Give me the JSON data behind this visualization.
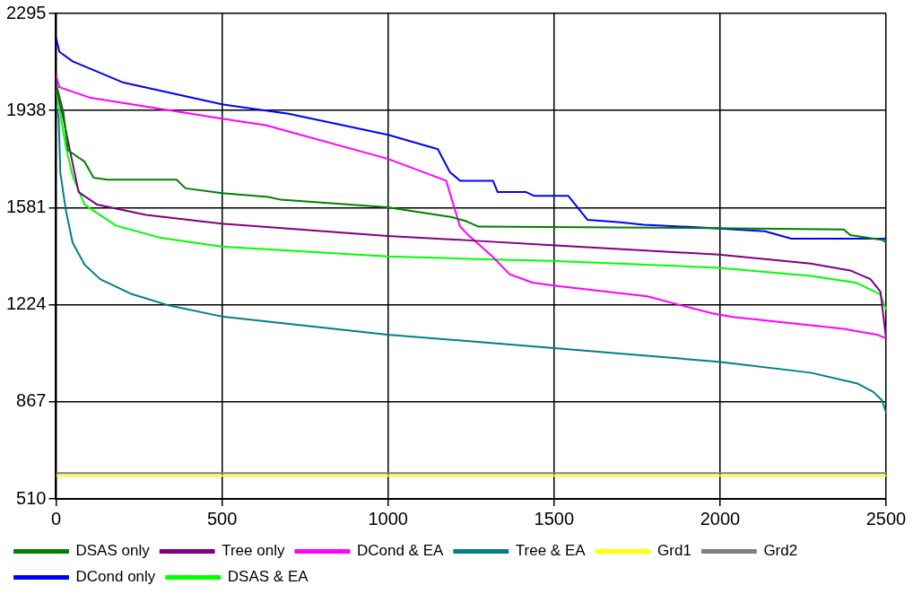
{
  "chart_data": {
    "type": "line",
    "xlim": [
      0,
      2500
    ],
    "xticks": [
      0,
      500,
      1000,
      1500,
      2000,
      2500
    ],
    "ylim": [
      510,
      2295
    ],
    "yticks": [
      510,
      867,
      1224,
      1581,
      1938,
      2295
    ],
    "grid": true,
    "legend": "bottom",
    "marker": "none",
    "line_style": "solid",
    "series": [
      {
        "name": "DSAS only",
        "color": "#008000",
        "x": [
          0,
          22,
          36,
          86,
          113,
          155,
          363,
          390,
          500,
          639,
          677,
          998,
          1192,
          1236,
          1272,
          1977,
          2373,
          2392,
          2490,
          2500
        ],
        "values": [
          2038,
          1933,
          1792,
          1750,
          1691,
          1684,
          1684,
          1652,
          1634,
          1620,
          1610,
          1582,
          1546,
          1531,
          1511,
          1506,
          1501,
          1480,
          1462,
          1452
        ]
      },
      {
        "name": "Tree only",
        "color": "#800080",
        "x": [
          0,
          22,
          50,
          68,
          124,
          271,
          498,
          998,
          1266,
          1493,
          1997,
          2273,
          2392,
          2453,
          2483,
          2500
        ],
        "values": [
          2030,
          1909,
          1743,
          1638,
          1592,
          1554,
          1522,
          1477,
          1459,
          1443,
          1408,
          1375,
          1350,
          1318,
          1272,
          1100
        ]
      },
      {
        "name": "DCond & EA",
        "color": "#ff00ff",
        "x": [
          0,
          10,
          100,
          500,
          631,
          998,
          1175,
          1217,
          1247,
          1316,
          1366,
          1435,
          1504,
          1781,
          1878,
          1977,
          2038,
          2373,
          2472,
          2500
        ],
        "values": [
          2067,
          2024,
          1986,
          1908,
          1884,
          1761,
          1680,
          1511,
          1474,
          1399,
          1336,
          1305,
          1294,
          1255,
          1223,
          1192,
          1179,
          1135,
          1114,
          1100
        ]
      },
      {
        "name": "Tree & EA",
        "color": "#008080",
        "x": [
          0,
          8,
          13,
          30,
          50,
          86,
          133,
          224,
          335,
          498,
          998,
          1493,
          1997,
          2273,
          2412,
          2462,
          2488,
          2500
        ],
        "values": [
          1961,
          1909,
          1708,
          1568,
          1452,
          1371,
          1318,
          1265,
          1223,
          1181,
          1114,
          1065,
          1014,
          974,
          935,
          903,
          872,
          826
        ]
      },
      {
        "name": "Grd1",
        "color": "#ffff00",
        "x": [
          0,
          2500
        ],
        "values": [
          595,
          595
        ]
      },
      {
        "name": "Grd2",
        "color": "#808080",
        "x": [
          0,
          2500
        ],
        "values": [
          605,
          605
        ]
      },
      {
        "name": "DCond only",
        "color": "#0000ff",
        "x": [
          0,
          10,
          50,
          200,
          500,
          700,
          1000,
          1150,
          1186,
          1217,
          1316,
          1330,
          1416,
          1440,
          1543,
          1601,
          1700,
          1770,
          1977,
          2135,
          2215,
          2500
        ],
        "values": [
          2207,
          2154,
          2119,
          2042,
          1961,
          1926,
          1849,
          1796,
          1712,
          1680,
          1680,
          1638,
          1638,
          1624,
          1624,
          1536,
          1527,
          1518,
          1506,
          1494,
          1467,
          1467
        ]
      },
      {
        "name": "DSAS & EA",
        "color": "#00ff00",
        "x": [
          0,
          30,
          50,
          86,
          180,
          318,
          498,
          998,
          1266,
          1493,
          1997,
          2273,
          2412,
          2483,
          2500
        ],
        "values": [
          2014,
          1803,
          1698,
          1592,
          1515,
          1469,
          1438,
          1402,
          1392,
          1385,
          1360,
          1330,
          1304,
          1262,
          1206
        ]
      }
    ]
  }
}
